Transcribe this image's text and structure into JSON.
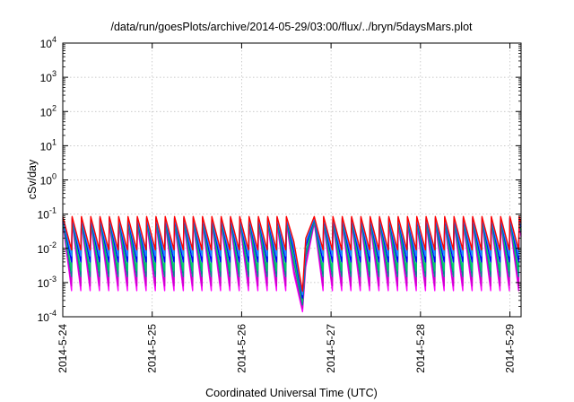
{
  "page": {
    "title": "/data/run/goesPlots/archive/2014-05-29/03:00/flux/../bryn/5daysMars.plot"
  },
  "chart_data": {
    "type": "line",
    "title": "/data/run/goesPlots/archive/2014-05-29/03:00/flux/../bryn/5daysMars.plot",
    "xlabel": "Coordinated Universal Time (UTC)",
    "ylabel": "cSv/day",
    "y_scale": "log",
    "ylim": [
      0.0001,
      10000
    ],
    "xlim": [
      "2014-05-24T00:00",
      "2014-05-29T03:00"
    ],
    "x_ticks": [
      "2014-5-24",
      "2014-5-25",
      "2014-5-26",
      "2014-5-27",
      "2014-5-28",
      "2014-5-29"
    ],
    "y_ticks": [
      {
        "value": 0.0001,
        "base": "10",
        "exp": "-4"
      },
      {
        "value": 0.001,
        "base": "10",
        "exp": "-3"
      },
      {
        "value": 0.01,
        "base": "10",
        "exp": "-2"
      },
      {
        "value": 0.1,
        "base": "10",
        "exp": "-1"
      },
      {
        "value": 1,
        "base": "10",
        "exp": "0"
      },
      {
        "value": 10,
        "base": "10",
        "exp": "1"
      },
      {
        "value": 100,
        "base": "10",
        "exp": "2"
      },
      {
        "value": 1000,
        "base": "10",
        "exp": "3"
      },
      {
        "value": 10000,
        "base": "10",
        "exp": "4"
      }
    ],
    "grid": true,
    "legend": "none",
    "sawtooth_period_hours": 2.5,
    "dip": {
      "start": "2014-05-26T14:00",
      "bottom": "2014-05-26T16:20",
      "min_value": 0.00014
    },
    "series": [
      {
        "color": "#ff00ff",
        "peak": 0.055,
        "trough": 0.00058
      },
      {
        "color": "#cc00cc",
        "peak": 0.06,
        "trough": 0.0008
      },
      {
        "color": "#008b8b",
        "peak": 0.065,
        "trough": 0.0015
      },
      {
        "color": "#00cc66",
        "peak": 0.07,
        "trough": 0.0022
      },
      {
        "color": "#0000ff",
        "peak": 0.075,
        "trough": 0.004
      },
      {
        "color": "#1e90ff",
        "peak": 0.078,
        "trough": 0.006
      },
      {
        "color": "#ff0000",
        "peak": 0.085,
        "trough": 0.009
      }
    ]
  }
}
